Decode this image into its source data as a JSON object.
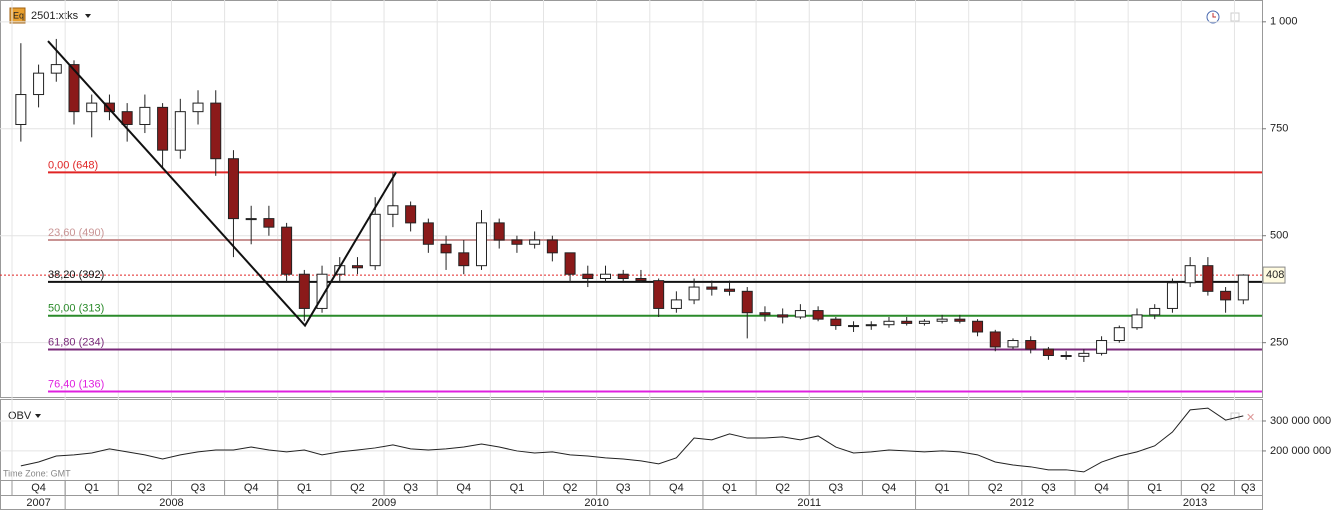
{
  "chart_data": [
    {
      "type": "candlestick",
      "title": "2501:xtks",
      "open": [
        760,
        830,
        880,
        900,
        790,
        810,
        790,
        760,
        800,
        700,
        790,
        810,
        680,
        540,
        540,
        520,
        410,
        330,
        410,
        430,
        430,
        550,
        570,
        530,
        480,
        460,
        430,
        530,
        490,
        480,
        490,
        460,
        410,
        400,
        410,
        400,
        395,
        330,
        350,
        380,
        375,
        370,
        320,
        315,
        310,
        325,
        305,
        290,
        290,
        292,
        300,
        295,
        300,
        305,
        300,
        275,
        240,
        255,
        235,
        220,
        218,
        225,
        255,
        285,
        315,
        330,
        390,
        430,
        370,
        350
      ],
      "high": [
        950,
        900,
        960,
        910,
        830,
        830,
        810,
        830,
        810,
        820,
        840,
        840,
        700,
        570,
        570,
        530,
        420,
        430,
        450,
        450,
        590,
        648,
        580,
        540,
        500,
        490,
        560,
        540,
        500,
        510,
        500,
        460,
        430,
        430,
        420,
        420,
        400,
        370,
        400,
        395,
        395,
        380,
        335,
        330,
        340,
        335,
        310,
        300,
        300,
        310,
        310,
        305,
        315,
        315,
        305,
        280,
        260,
        265,
        240,
        230,
        235,
        265,
        290,
        330,
        340,
        400,
        450,
        450,
        380,
        410
      ],
      "low": [
        720,
        800,
        860,
        760,
        730,
        770,
        720,
        740,
        660,
        680,
        760,
        640,
        450,
        480,
        500,
        390,
        300,
        320,
        390,
        410,
        420,
        520,
        510,
        460,
        420,
        410,
        420,
        470,
        460,
        470,
        440,
        390,
        380,
        390,
        390,
        390,
        310,
        320,
        340,
        360,
        360,
        260,
        300,
        295,
        305,
        300,
        280,
        275,
        280,
        285,
        290,
        290,
        295,
        295,
        265,
        230,
        235,
        225,
        210,
        210,
        205,
        220,
        250,
        280,
        305,
        320,
        380,
        360,
        320,
        340
      ],
      "close": [
        830,
        880,
        900,
        790,
        810,
        790,
        760,
        800,
        700,
        790,
        810,
        680,
        540,
        540,
        520,
        410,
        330,
        410,
        430,
        425,
        550,
        570,
        530,
        480,
        460,
        430,
        530,
        490,
        480,
        490,
        460,
        410,
        400,
        410,
        400,
        395,
        330,
        350,
        380,
        375,
        370,
        320,
        315,
        310,
        325,
        305,
        290,
        290,
        292,
        300,
        295,
        300,
        305,
        300,
        275,
        240,
        255,
        235,
        220,
        218,
        225,
        255,
        285,
        315,
        330,
        390,
        430,
        370,
        350,
        408
      ],
      "ylim": [
        123,
        1051
      ],
      "yticks": [
        {
          "value": 1000,
          "label": "1 000"
        },
        750,
        500,
        250
      ],
      "zigzag": [
        955,
        290,
        648
      ],
      "fib_levels": [
        {
          "label": "0,00 (648)",
          "value": 648,
          "color": "#e02424"
        },
        {
          "label": "23,60 (490)",
          "value": 490,
          "color": "#c99494"
        },
        {
          "label": "38,20 (392)",
          "value": 392,
          "color": "#111111"
        },
        {
          "label": "50,00 (313)",
          "value": 313,
          "color": "#2a8a2a"
        },
        {
          "label": "61,80 (234)",
          "value": 234,
          "color": "#7a2a7a"
        },
        {
          "label": "76,40 (136)",
          "value": 136,
          "color": "#e020e0"
        }
      ]
    },
    {
      "type": "line",
      "title": "OBV",
      "color": "#222222",
      "values": [
        150000000,
        163000000,
        183000000,
        187000000,
        193000000,
        207000000,
        197000000,
        187000000,
        173000000,
        187000000,
        197000000,
        203000000,
        203000000,
        213000000,
        203000000,
        197000000,
        203000000,
        187000000,
        197000000,
        203000000,
        210000000,
        220000000,
        207000000,
        203000000,
        207000000,
        213000000,
        223000000,
        213000000,
        200000000,
        193000000,
        197000000,
        187000000,
        183000000,
        177000000,
        173000000,
        167000000,
        157000000,
        177000000,
        243000000,
        237000000,
        257000000,
        243000000,
        243000000,
        247000000,
        237000000,
        250000000,
        213000000,
        193000000,
        197000000,
        203000000,
        200000000,
        197000000,
        200000000,
        197000000,
        187000000,
        163000000,
        153000000,
        147000000,
        137000000,
        137000000,
        130000000,
        163000000,
        183000000,
        197000000,
        217000000,
        263000000,
        337000000,
        343000000,
        303000000,
        317000000
      ],
      "ylim": [
        103000000,
        370000000
      ],
      "yticks": [
        {
          "value": 300000000,
          "label": "300 000 000"
        },
        {
          "value": 200000000,
          "label": "200 000 000"
        }
      ]
    }
  ],
  "x_axis": {
    "quarters": [
      "Q4",
      "Q1",
      "Q2",
      "Q3",
      "Q4",
      "Q1",
      "Q2",
      "Q3",
      "Q4",
      "Q1",
      "Q2",
      "Q3",
      "Q4",
      "Q1",
      "Q2",
      "Q3",
      "Q4",
      "Q1",
      "Q2",
      "Q3",
      "Q4",
      "Q1",
      "Q2",
      "Q3"
    ],
    "years": [
      "2007",
      "2008",
      "2009",
      "2010",
      "2011",
      "2012",
      "2013"
    ]
  },
  "time_zone": "Time Zone: GMT"
}
